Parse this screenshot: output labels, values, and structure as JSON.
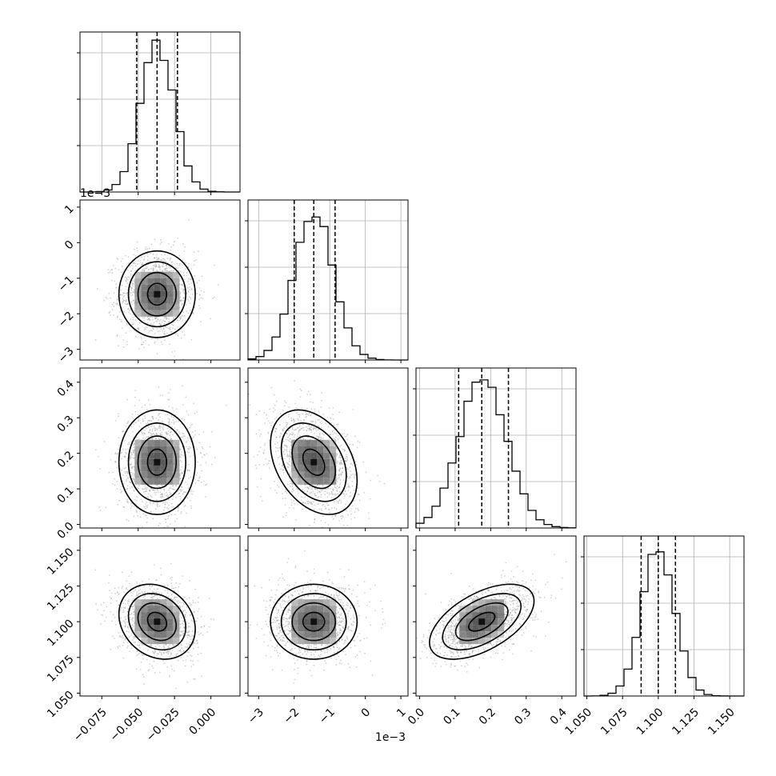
{
  "figure": {
    "exponent_label_x1": "1e−3",
    "exponent_label_y1": "1e−3"
  },
  "chart_data": {
    "type": "corner",
    "parameters": [
      {
        "range": [
          -0.09,
          0.02
        ],
        "ticks": [
          -0.075,
          -0.05,
          -0.025,
          0.0
        ],
        "tick_labels": [
          "−0.075",
          "−0.050",
          "−0.025",
          "0.000"
        ],
        "quantiles": [
          -0.051,
          -0.037,
          -0.023
        ],
        "mean": -0.037,
        "sd": 0.0115,
        "hist_max": 0.0415
      },
      {
        "range": [
          -3.3,
          1.2
        ],
        "ticks": [
          -3,
          -2,
          -1,
          0,
          1
        ],
        "tick_labels": [
          "−3",
          "−2",
          "−1",
          "0",
          "1"
        ],
        "scale_note": "1e−3",
        "quantiles": [
          -2.0,
          -1.45,
          -0.85
        ],
        "mean": -1.45,
        "sd": 0.55,
        "hist_max": 0.0415
      },
      {
        "range": [
          -0.01,
          0.44
        ],
        "ticks": [
          0.0,
          0.1,
          0.2,
          0.3,
          0.4
        ],
        "tick_labels": [
          "0.0",
          "0.1",
          "0.2",
          "0.3",
          "0.4"
        ],
        "quantiles": [
          0.11,
          0.175,
          0.25
        ],
        "mean": 0.178,
        "sd": 0.067,
        "hist_max": 0.04
      },
      {
        "range": [
          1.048,
          1.16
        ],
        "ticks": [
          1.05,
          1.075,
          1.1,
          1.125,
          1.15
        ],
        "tick_labels": [
          "1.050",
          "1.075",
          "1.100",
          "1.125",
          "1.150"
        ],
        "quantiles": [
          1.088,
          1.1,
          1.112
        ],
        "mean": 1.1,
        "sd": 0.0115,
        "hist_max": 0.0415
      }
    ],
    "panels": [
      {
        "row": 1,
        "col": 0,
        "mean": [
          -0.037,
          -1.45
        ],
        "sd": [
          0.0125,
          0.58
        ],
        "rho": 0.0
      },
      {
        "row": 2,
        "col": 0,
        "mean": [
          -0.037,
          0.175
        ],
        "sd": [
          0.0125,
          0.07
        ],
        "rho": 0.0
      },
      {
        "row": 2,
        "col": 1,
        "mean": [
          -1.45,
          0.175
        ],
        "sd": [
          0.58,
          0.07
        ],
        "rho": -0.35
      },
      {
        "row": 3,
        "col": 0,
        "mean": [
          -0.037,
          1.1
        ],
        "sd": [
          0.0125,
          0.0125
        ],
        "rho": -0.2
      },
      {
        "row": 3,
        "col": 1,
        "mean": [
          -1.45,
          1.1
        ],
        "sd": [
          0.58,
          0.0125
        ],
        "rho": 0.0
      },
      {
        "row": 3,
        "col": 2,
        "mean": [
          0.175,
          1.1
        ],
        "sd": [
          0.07,
          0.0125
        ],
        "rho": 0.55
      }
    ],
    "contour_levels_sigma": [
      0.5,
      1.0,
      1.5,
      2.0
    ],
    "grid": true
  }
}
